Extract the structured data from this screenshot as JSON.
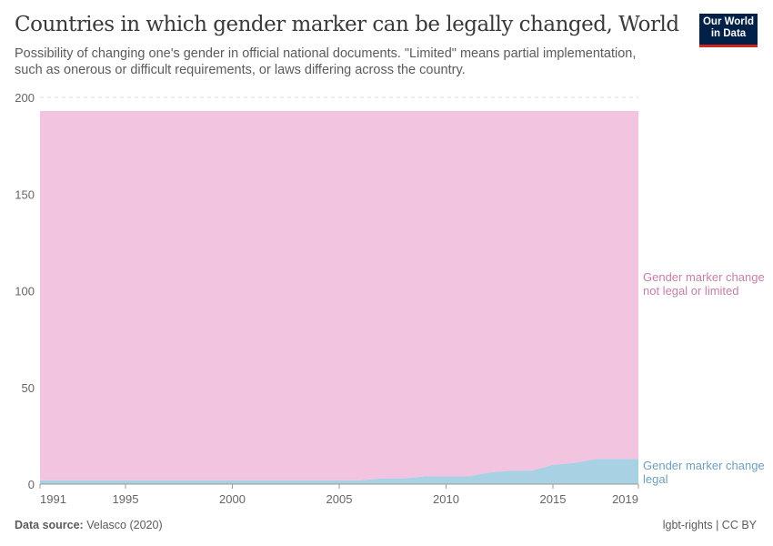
{
  "header": {
    "title": "Countries in which gender marker can be legally changed, World",
    "subtitle": "Possibility of changing one's gender in official national documents. \"Limited\" means partial implementation, such as onerous or difficult requirements, or laws differing across the country.",
    "logo": "Our World in Data"
  },
  "footer": {
    "source_label": "Data source:",
    "source": "Velasco (2020)",
    "license": "lgbt-rights | CC BY"
  },
  "chart_data": {
    "type": "area",
    "stacked": true,
    "x": [
      1991,
      1992,
      1993,
      1994,
      1995,
      1996,
      1997,
      1998,
      1999,
      2000,
      2001,
      2002,
      2003,
      2004,
      2005,
      2006,
      2007,
      2008,
      2009,
      2010,
      2011,
      2012,
      2013,
      2014,
      2015,
      2016,
      2017,
      2018,
      2019
    ],
    "series": [
      {
        "name": "Gender marker change legal",
        "color": "#a8d1e4",
        "label_color": "#6d9fbf",
        "values": [
          2,
          2,
          2,
          2,
          2,
          2,
          2,
          2,
          2,
          2,
          2,
          2,
          2,
          2,
          2,
          2,
          3,
          3,
          4,
          4,
          4,
          6,
          7,
          7,
          10,
          11,
          13,
          13,
          13
        ]
      },
      {
        "name": "Gender marker change not legal or limited",
        "color": "#f3c4e0",
        "label_color": "#c57fa9",
        "values": [
          191,
          191,
          191,
          191,
          191,
          191,
          191,
          191,
          191,
          191,
          191,
          191,
          191,
          191,
          191,
          191,
          190,
          190,
          189,
          189,
          189,
          187,
          186,
          186,
          183,
          182,
          180,
          180,
          180
        ]
      }
    ],
    "ylim": [
      0,
      200
    ],
    "yticks": [
      0,
      50,
      100,
      150,
      200
    ],
    "xticks": [
      1991,
      1995,
      2000,
      2005,
      2010,
      2015,
      2019
    ],
    "grid": "horizontal dashed",
    "legend": "right, inline labels"
  }
}
